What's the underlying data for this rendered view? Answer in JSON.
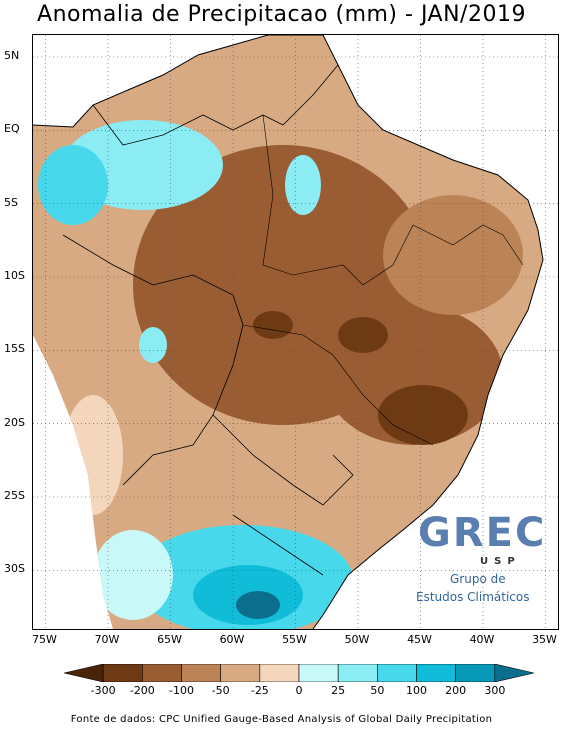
{
  "title": "Anomalia de Precipitacao (mm) - JAN/2019",
  "source": "Fonte de dados: CPC Unified Gauge-Based Analysis of Global Daily Precipitation",
  "map": {
    "lat_labels": [
      {
        "label": "5N",
        "lat": 5
      },
      {
        "label": "EQ",
        "lat": 0
      },
      {
        "label": "5S",
        "lat": -5
      },
      {
        "label": "10S",
        "lat": -10
      },
      {
        "label": "15S",
        "lat": -15
      },
      {
        "label": "20S",
        "lat": -20
      },
      {
        "label": "25S",
        "lat": -25
      },
      {
        "label": "30S",
        "lat": -30
      }
    ],
    "lon_labels": [
      {
        "label": "75W",
        "lon": -75
      },
      {
        "label": "70W",
        "lon": -70
      },
      {
        "label": "65W",
        "lon": -65
      },
      {
        "label": "60W",
        "lon": -60
      },
      {
        "label": "55W",
        "lon": -55
      },
      {
        "label": "50W",
        "lon": -50
      },
      {
        "label": "45W",
        "lon": -45
      },
      {
        "label": "40W",
        "lon": -40
      },
      {
        "label": "35W",
        "lon": -35
      }
    ],
    "lon_range": [
      -76,
      -34
    ],
    "lat_range": [
      -34,
      6.5
    ],
    "ocean_color": "#ffffff",
    "grid": "dotted"
  },
  "legend": {
    "colors": [
      "#4a2308",
      "#6e3a14",
      "#9a5c32",
      "#bc8456",
      "#d8aa84",
      "#f4d6bc",
      "#c8f8f8",
      "#8cecf4",
      "#48d8ec",
      "#10bcd8",
      "#0898b8",
      "#0a6e8c"
    ],
    "labels": [
      "-300",
      "-200",
      "-100",
      "-50",
      "-25",
      "0",
      "25",
      "50",
      "100",
      "200",
      "300"
    ]
  },
  "logo": {
    "main": "GREC",
    "sub": "USP",
    "line1": "Grupo de",
    "line2": "Estudos Climáticos"
  }
}
